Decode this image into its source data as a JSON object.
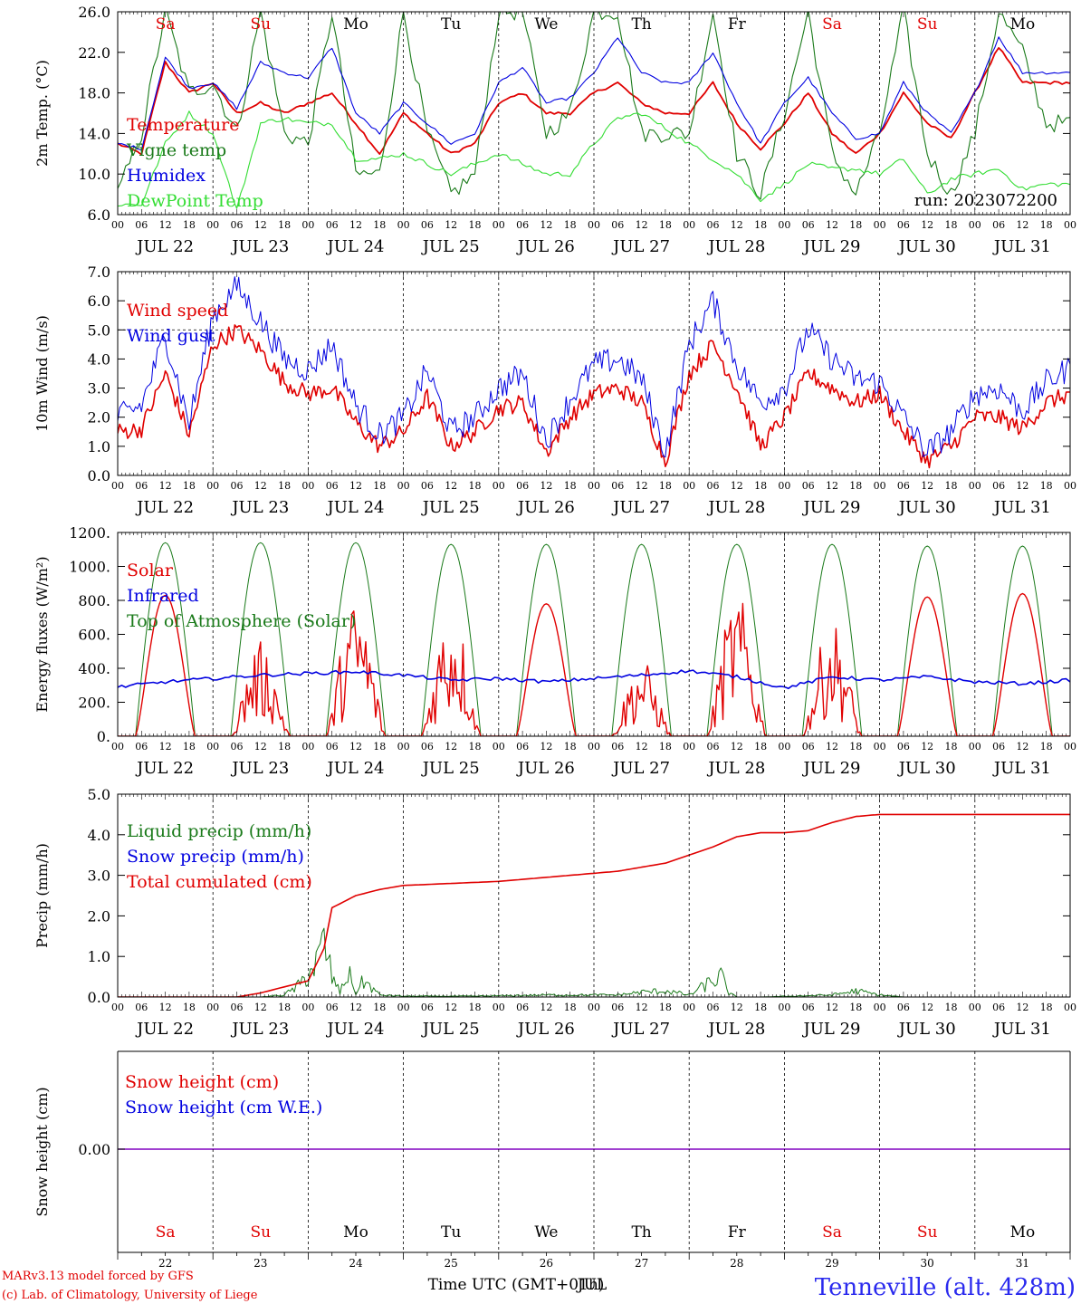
{
  "meta": {
    "run_label": "run: 2023072200",
    "station": "Tenneville (alt. 428m)",
    "credit_line1": "MARv3.13 model forced by GFS",
    "credit_line2": "(c) Lab. of Climatology, University of Liege",
    "xlabel": "Time UTC (GMT+01h)",
    "xlabel_overlay": "JUL",
    "colors": {
      "red": "#e00000",
      "blue": "#0000e0",
      "green": "#1a7a1a",
      "lightgreen": "#33dd33",
      "purple": "#8000c0"
    }
  },
  "days": {
    "dates": [
      "JUL 22",
      "JUL 23",
      "JUL 24",
      "JUL 25",
      "JUL 26",
      "JUL 27",
      "JUL 28",
      "JUL 29",
      "JUL 30",
      "JUL 31"
    ],
    "weekdays": [
      "Sa",
      "Su",
      "Mo",
      "Tu",
      "We",
      "Th",
      "Fr",
      "Sa",
      "Su",
      "Mo"
    ],
    "weekend": [
      true,
      true,
      false,
      false,
      false,
      false,
      false,
      true,
      true,
      false
    ],
    "day_numbers": [
      "22",
      "23",
      "24",
      "25",
      "26",
      "27",
      "28",
      "29",
      "30",
      "31"
    ],
    "hour_ticks": [
      "00",
      "06",
      "12",
      "18"
    ],
    "last_tick": "00"
  },
  "chart_data": [
    {
      "type": "line",
      "ylabel": "2m Temp. (°C)",
      "ylim": [
        6,
        26
      ],
      "yticks": [
        "6.0",
        "10.0",
        "14.0",
        "18.0",
        "22.0",
        "26.0"
      ],
      "legend": [
        "Temperature",
        "Vigne temp",
        "Humidex",
        "DewPoint Temp"
      ],
      "x_hours": [
        0,
        6,
        12,
        18,
        24,
        30,
        36,
        42,
        48,
        54,
        60,
        66,
        72,
        78,
        84,
        90,
        96,
        102,
        108,
        114,
        120,
        126,
        132,
        138,
        144,
        150,
        156,
        162,
        168,
        174,
        180,
        186,
        192,
        198,
        204,
        210,
        216,
        222,
        228,
        234,
        240
      ],
      "series": [
        {
          "name": "Temperature",
          "values": [
            13,
            12,
            21,
            18,
            19,
            16,
            17,
            16,
            17,
            18,
            15,
            12,
            16,
            14,
            12,
            13,
            17,
            18,
            16,
            16,
            18,
            19,
            17,
            16,
            16,
            19,
            15,
            12.5,
            15,
            18,
            14,
            12,
            14,
            18,
            15,
            13.5,
            18,
            22.5,
            19,
            19,
            19
          ]
        },
        {
          "name": "Vigne temp",
          "values": [
            8,
            14,
            26,
            18,
            19,
            14,
            26,
            14,
            13,
            26,
            10,
            10,
            26,
            14,
            8,
            10,
            26,
            26,
            14,
            16,
            26,
            26,
            14,
            14,
            14,
            26,
            12,
            8,
            16,
            26,
            12,
            8,
            14,
            26,
            12,
            8,
            14,
            26,
            22,
            15,
            15
          ]
        },
        {
          "name": "Humidex",
          "values": [
            13,
            12.5,
            21.5,
            18.5,
            19,
            16.5,
            21,
            20,
            19.5,
            22.5,
            16,
            14,
            17,
            15,
            13,
            14,
            19,
            20.5,
            17,
            17.5,
            20,
            23.5,
            20,
            19,
            19,
            22,
            17,
            13,
            17,
            19.5,
            16,
            13.5,
            14,
            19,
            16,
            14,
            18,
            23.5,
            20,
            20,
            20
          ]
        },
        {
          "name": "DewPoint Temp",
          "values": [
            7,
            7,
            13,
            16,
            14,
            6.5,
            15,
            15.5,
            15,
            15,
            11.5,
            11.5,
            12,
            11,
            10,
            11,
            12,
            11,
            10,
            10,
            13,
            15.5,
            16,
            14.5,
            13,
            11.5,
            10,
            7.5,
            9,
            11,
            10.5,
            10.5,
            10,
            11.5,
            8,
            9.5,
            10,
            10.5,
            8.5,
            9,
            9
          ]
        }
      ]
    },
    {
      "type": "line",
      "ylabel": "10m Wind (m/s)",
      "ylim": [
        0,
        7
      ],
      "yticks": [
        "0.0",
        "1.0",
        "2.0",
        "3.0",
        "4.0",
        "5.0",
        "6.0",
        "7.0"
      ],
      "reference_line": 5,
      "legend": [
        "Wind speed",
        "Wind gust"
      ],
      "x_hours": [
        0,
        6,
        12,
        18,
        24,
        30,
        36,
        42,
        48,
        54,
        60,
        66,
        72,
        78,
        84,
        90,
        96,
        102,
        108,
        114,
        120,
        126,
        132,
        138,
        144,
        150,
        156,
        162,
        168,
        174,
        180,
        186,
        192,
        198,
        204,
        210,
        216,
        222,
        228,
        234,
        240
      ],
      "series": [
        {
          "name": "Wind speed",
          "values": [
            1.5,
            1.6,
            3.5,
            1.4,
            4.5,
            5,
            4.3,
            3.2,
            2.8,
            3,
            1.8,
            1,
            1.5,
            2.7,
            1,
            1.5,
            2.3,
            2.5,
            0.8,
            2,
            2.8,
            3,
            2.5,
            0.5,
            3.5,
            4.5,
            3,
            1,
            2,
            3.5,
            3,
            2.5,
            2.8,
            1.5,
            0.5,
            1,
            2,
            2,
            1.6,
            2.5,
            2.8
          ]
        },
        {
          "name": "Wind gust",
          "values": [
            2,
            2.4,
            4.8,
            1.8,
            5.5,
            6.5,
            5.3,
            4,
            3.6,
            4.5,
            2.4,
            1.4,
            2,
            3.6,
            1.5,
            2,
            3,
            3.5,
            1.2,
            2.6,
            3.8,
            4,
            3.3,
            0.8,
            4.5,
            6,
            3.8,
            2.5,
            3,
            5,
            4,
            3.3,
            3.2,
            2,
            0.8,
            1.5,
            2.8,
            3,
            2.2,
            3.2,
            3.7
          ]
        }
      ]
    },
    {
      "type": "line",
      "ylabel": "Energy fluxes (W/m²)",
      "ylim": [
        0,
        1200
      ],
      "yticks": [
        "0.",
        "200.",
        "400.",
        "600.",
        "800.",
        "1000.",
        "1200."
      ],
      "legend": [
        "Solar",
        "Infrared",
        "Top of Atmosphere (Solar)"
      ],
      "day_peaks": {
        "solar": [
          830,
          560,
          820,
          780,
          780,
          450,
          840,
          690,
          820,
          840
        ],
        "toa": [
          1140,
          1140,
          1140,
          1130,
          1130,
          1130,
          1130,
          1130,
          1120,
          1120
        ]
      },
      "x_hours": [
        0,
        12,
        24,
        36,
        48,
        60,
        72,
        84,
        96,
        108,
        120,
        132,
        144,
        156,
        168,
        180,
        192,
        204,
        216,
        228,
        240
      ],
      "series": [
        {
          "name": "Infrared",
          "values": [
            290,
            320,
            340,
            360,
            370,
            380,
            360,
            330,
            340,
            320,
            340,
            360,
            385,
            350,
            285,
            350,
            330,
            350,
            320,
            310,
            330
          ]
        }
      ]
    },
    {
      "type": "line",
      "ylabel": "Precip (mm/h)",
      "ylim": [
        0,
        5
      ],
      "yticks": [
        "0.0",
        "1.0",
        "2.0",
        "3.0",
        "4.0",
        "5.0"
      ],
      "legend": [
        "Liquid precip (mm/h)",
        "Snow precip (mm/h)",
        "Total cumulated (cm)"
      ],
      "series": [
        {
          "name": "Total cumulated (cm)",
          "x_hours": [
            0,
            30,
            36,
            42,
            48,
            52,
            54,
            60,
            66,
            72,
            84,
            96,
            108,
            120,
            126,
            132,
            138,
            144,
            150,
            156,
            162,
            168,
            174,
            180,
            186,
            192,
            198,
            204,
            210,
            216,
            222,
            228,
            234,
            240
          ],
          "values": [
            0,
            0,
            0.1,
            0.25,
            0.4,
            1.2,
            2.2,
            2.5,
            2.65,
            2.75,
            2.8,
            2.85,
            2.95,
            3.05,
            3.1,
            3.2,
            3.3,
            3.5,
            3.7,
            3.95,
            4.05,
            4.05,
            4.1,
            4.3,
            4.45,
            4.5,
            4.5,
            4.5,
            4.5,
            4.5,
            4.5,
            4.5,
            4.5,
            4.5
          ]
        },
        {
          "name": "Liquid precip (mm/h)",
          "x_hours": [
            0,
            36,
            42,
            46,
            48,
            50,
            52,
            54,
            56,
            58,
            60,
            62,
            66,
            72,
            90,
            108,
            126,
            132,
            138,
            144,
            150,
            152,
            154,
            156,
            158,
            162,
            180,
            186,
            192,
            198,
            240
          ],
          "values": [
            0,
            0,
            0.05,
            0.3,
            0.6,
            0.8,
            1.3,
            0.5,
            0.1,
            0.6,
            0.1,
            0.4,
            0.05,
            0.02,
            0.02,
            0.05,
            0.05,
            0.12,
            0.15,
            0.05,
            0.4,
            0.5,
            0.1,
            0,
            0,
            0,
            0.05,
            0.15,
            0.05,
            0,
            0
          ]
        }
      ]
    },
    {
      "type": "line",
      "ylabel": "Snow height (cm)",
      "ytick_label": "0.00",
      "legend": [
        "Snow height (cm)",
        "Snow height (cm W.E.)"
      ],
      "series": [
        {
          "name": "Snow height (cm)",
          "values": [
            0,
            0
          ]
        },
        {
          "name": "Snow height (cm W.E.)",
          "values": [
            0,
            0
          ]
        }
      ]
    }
  ]
}
